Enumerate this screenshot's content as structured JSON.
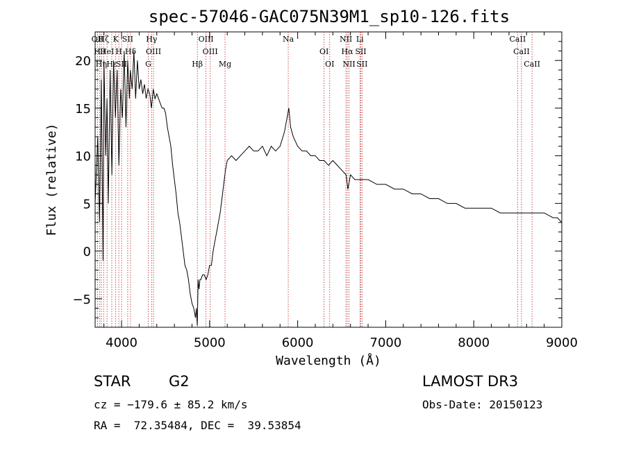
{
  "chart_data": {
    "type": "line",
    "title": "spec-57046-GAC075N39M1_sp10-126.fits",
    "xlabel": "Wavelength (Å)",
    "ylabel": "Flux (relative)",
    "xlim": [
      3700,
      9000
    ],
    "ylim": [
      -8,
      23
    ],
    "xticks": [
      4000,
      5000,
      6000,
      7000,
      8000,
      9000
    ],
    "yticks": [
      -5,
      0,
      5,
      10,
      15,
      20
    ],
    "grid": false,
    "series": [
      {
        "x": [
          3700,
          3730,
          3750,
          3770,
          3790,
          3800,
          3820,
          3835,
          3850,
          3870,
          3890,
          3910,
          3930,
          3950,
          3970,
          3990,
          4010,
          4030,
          4050,
          4070,
          4090,
          4100,
          4120,
          4140,
          4160,
          4180,
          4200,
          4220,
          4240,
          4260,
          4280,
          4300,
          4320,
          4340,
          4360,
          4380,
          4400,
          4420,
          4440,
          4460,
          4480,
          4500,
          4520,
          4540,
          4560,
          4580,
          4600,
          4620,
          4640,
          4660,
          4680,
          4700,
          4720,
          4740,
          4760,
          4780,
          4800,
          4820,
          4840,
          4850,
          4860,
          4870,
          4880,
          4890,
          4900,
          4920,
          4940,
          4960,
          4980,
          5000,
          5020,
          5040,
          5060,
          5080,
          5100,
          5120,
          5140,
          5160,
          5180,
          5200,
          5250,
          5300,
          5350,
          5400,
          5450,
          5500,
          5550,
          5600,
          5650,
          5700,
          5750,
          5800,
          5850,
          5880,
          5900,
          5920,
          5950,
          6000,
          6050,
          6100,
          6150,
          6200,
          6250,
          6300,
          6350,
          6400,
          6450,
          6500,
          6550,
          6570,
          6600,
          6650,
          6700,
          6750,
          6800,
          6900,
          7000,
          7100,
          7200,
          7300,
          7400,
          7500,
          7600,
          7700,
          7800,
          7900,
          8000,
          8100,
          8200,
          8300,
          8400,
          8500,
          8550,
          8600,
          8650,
          8700,
          8800,
          8900,
          8950,
          9000
        ],
        "values": [
          5,
          12,
          3,
          18,
          -1,
          20,
          10,
          16,
          5,
          19,
          8,
          20,
          14,
          19,
          9,
          17,
          14,
          21,
          13,
          20,
          16,
          19,
          17,
          21,
          16,
          20,
          17,
          18,
          16.5,
          17.5,
          16,
          17,
          16.5,
          15,
          17,
          16,
          16.5,
          16,
          15.5,
          15,
          15,
          14.5,
          13,
          12,
          11,
          9,
          7.5,
          6,
          4,
          3,
          1.5,
          0,
          -1.5,
          -2,
          -3,
          -4.5,
          -5.5,
          -6,
          -7,
          -6,
          -7.8,
          -3,
          -4,
          -3,
          -3,
          -2.5,
          -2.5,
          -3,
          -2.5,
          -1.5,
          -1.5,
          0,
          1,
          2,
          3,
          4,
          5.5,
          7,
          8.5,
          9.5,
          10,
          9.5,
          10,
          10.5,
          11,
          10.5,
          10.5,
          11,
          10,
          11,
          10.5,
          11,
          12.5,
          14,
          15,
          13,
          12,
          11,
          10.5,
          10.5,
          10,
          10,
          9.5,
          9.5,
          9,
          9.5,
          9,
          8.5,
          8,
          6.5,
          8,
          7.5,
          7.5,
          7.5,
          7.5,
          7,
          7,
          6.5,
          6.5,
          6,
          6,
          5.5,
          5.5,
          5,
          5,
          4.5,
          4.5,
          4.5,
          4.5,
          4,
          4,
          4,
          4,
          4,
          4,
          4,
          4,
          3.5,
          3.5,
          3
        ]
      }
    ],
    "lines": [
      {
        "x": 3727,
        "labels": [
          "OII"
        ]
      },
      {
        "x": 3750,
        "labels": [
          "Hθ"
        ]
      },
      {
        "x": 3770,
        "labels": [
          "Hη"
        ]
      },
      {
        "x": 3797,
        "labels": [
          "Hζ"
        ]
      },
      {
        "x": 3835,
        "labels": [
          "HeI"
        ]
      },
      {
        "x": 3889,
        "labels": [
          "Hε"
        ]
      },
      {
        "x": 3934,
        "labels": [
          "K"
        ]
      },
      {
        "x": 3969,
        "labels": [
          "H"
        ]
      },
      {
        "x": 4000,
        "labels": [
          "SII"
        ]
      },
      {
        "x": 4070,
        "labels": [
          "SII"
        ]
      },
      {
        "x": 4102,
        "labels": [
          "Hδ"
        ]
      },
      {
        "x": 4304,
        "labels": [
          "G"
        ]
      },
      {
        "x": 4341,
        "labels": [
          "Hγ"
        ]
      },
      {
        "x": 4363,
        "labels": [
          "OIII"
        ]
      },
      {
        "x": 4861,
        "labels": [
          "Hβ"
        ]
      },
      {
        "x": 4959,
        "labels": [
          "OIII"
        ]
      },
      {
        "x": 5007,
        "labels": [
          "OIII"
        ]
      },
      {
        "x": 5175,
        "labels": [
          "Mg"
        ]
      },
      {
        "x": 5893,
        "labels": [
          "Na"
        ]
      },
      {
        "x": 6300,
        "labels": [
          "OI"
        ]
      },
      {
        "x": 6364,
        "labels": [
          "OI"
        ]
      },
      {
        "x": 6548,
        "labels": [
          "NII"
        ]
      },
      {
        "x": 6563,
        "labels": [
          "Hα"
        ]
      },
      {
        "x": 6583,
        "labels": [
          "NII"
        ]
      },
      {
        "x": 6707,
        "labels": [
          "Li"
        ]
      },
      {
        "x": 6717,
        "labels": [
          "SII"
        ]
      },
      {
        "x": 6731,
        "labels": [
          "SII"
        ]
      },
      {
        "x": 8498,
        "labels": [
          "CaII"
        ]
      },
      {
        "x": 8542,
        "labels": [
          "CaII"
        ]
      },
      {
        "x": 8662,
        "labels": [
          "CaII"
        ]
      }
    ]
  },
  "info": {
    "object_class": "STAR",
    "subclass": "G2",
    "survey": "LAMOST DR3",
    "redshift_line": "cz = −179.6 ± 85.2 km/s",
    "obs_date": "Obs-Date: 20150123",
    "coords": "RA =  72.35484, DEC =  39.53854"
  },
  "colors": {
    "spectrum": "#000000",
    "line_marker": "#b22222",
    "axes": "#000000",
    "background": "#ffffff"
  }
}
